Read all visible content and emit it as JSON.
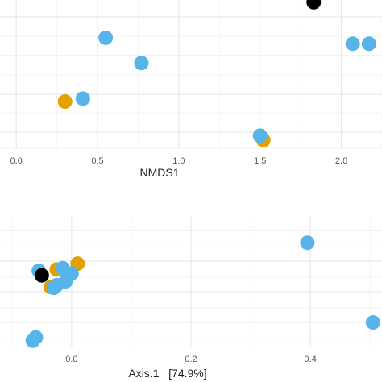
{
  "chart_data": [
    {
      "type": "scatter",
      "xlabel": "NMDS1",
      "xlim": [
        -0.1,
        2.25
      ],
      "ylim": [
        0,
        1
      ],
      "xticks": [
        0.0,
        0.5,
        1.0,
        1.5,
        2.0
      ],
      "xtick_labels": [
        "0.0",
        "0.5",
        "1.0",
        "1.5",
        "2.0"
      ],
      "colors": [
        "#56B4E9",
        "#E69F00",
        "#000000"
      ],
      "points": [
        {
          "x": 1.83,
          "y": 0.985,
          "color": "#000000"
        },
        {
          "x": 0.55,
          "y": 0.745,
          "color": "#56B4E9"
        },
        {
          "x": 2.07,
          "y": 0.705,
          "color": "#56B4E9"
        },
        {
          "x": 2.17,
          "y": 0.705,
          "color": "#56B4E9"
        },
        {
          "x": 0.77,
          "y": 0.575,
          "color": "#56B4E9"
        },
        {
          "x": 0.41,
          "y": 0.335,
          "color": "#56B4E9"
        },
        {
          "x": 0.3,
          "y": 0.315,
          "color": "#E69F00"
        },
        {
          "x": 1.52,
          "y": 0.055,
          "color": "#E69F00"
        },
        {
          "x": 1.5,
          "y": 0.085,
          "color": "#56B4E9"
        }
      ]
    },
    {
      "type": "scatter",
      "xlabel": "Axis.1   [74.9%]",
      "xlim": [
        -0.12,
        0.52
      ],
      "ylim": [
        0,
        1
      ],
      "xticks": [
        0.0,
        0.2,
        0.4
      ],
      "xtick_labels": [
        "0.0",
        "0.2",
        "0.4"
      ],
      "colors": [
        "#56B4E9",
        "#E69F00",
        "#000000"
      ],
      "points": [
        {
          "x": 0.395,
          "y": 0.795,
          "color": "#56B4E9"
        },
        {
          "x": 0.505,
          "y": 0.185,
          "color": "#56B4E9"
        },
        {
          "x": 0.01,
          "y": 0.635,
          "color": "#E69F00"
        },
        {
          "x": -0.025,
          "y": 0.59,
          "color": "#E69F00"
        },
        {
          "x": -0.015,
          "y": 0.6,
          "color": "#56B4E9"
        },
        {
          "x": 0.0,
          "y": 0.56,
          "color": "#56B4E9"
        },
        {
          "x": -0.055,
          "y": 0.58,
          "color": "#56B4E9"
        },
        {
          "x": -0.05,
          "y": 0.545,
          "color": "#000000"
        },
        {
          "x": -0.01,
          "y": 0.5,
          "color": "#56B4E9"
        },
        {
          "x": -0.025,
          "y": 0.47,
          "color": "#56B4E9"
        },
        {
          "x": -0.035,
          "y": 0.455,
          "color": "#E69F00"
        },
        {
          "x": -0.03,
          "y": 0.45,
          "color": "#56B4E9"
        },
        {
          "x": -0.06,
          "y": 0.07,
          "color": "#56B4E9"
        },
        {
          "x": -0.065,
          "y": 0.045,
          "color": "#56B4E9"
        }
      ]
    }
  ]
}
